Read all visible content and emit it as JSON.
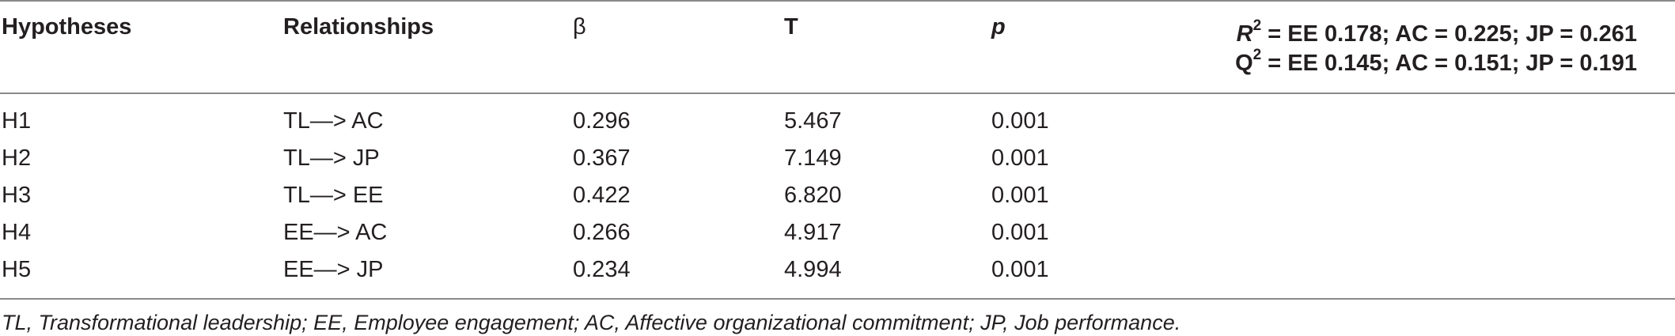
{
  "table": {
    "headers": {
      "hypotheses": "Hypotheses",
      "relationships": "Relationships",
      "beta": "β",
      "t": "T",
      "p": "p"
    },
    "fit": {
      "r2_symbol": "R",
      "r2_sup": "2",
      "r2_values": " = EE 0.178; AC = 0.225; JP = 0.261",
      "q2_symbol": "Q",
      "q2_sup": "2",
      "q2_values": " = EE 0.145; AC = 0.151; JP = 0.191"
    },
    "rows": [
      {
        "hypothesis": "H1",
        "relationship": "TL—> AC",
        "beta": "0.296",
        "t": "5.467",
        "p": "0.001"
      },
      {
        "hypothesis": "H2",
        "relationship": "TL—> JP",
        "beta": "0.367",
        "t": "7.149",
        "p": "0.001"
      },
      {
        "hypothesis": "H3",
        "relationship": "TL—> EE",
        "beta": "0.422",
        "t": "6.820",
        "p": "0.001"
      },
      {
        "hypothesis": "H4",
        "relationship": "EE—> AC",
        "beta": "0.266",
        "t": "4.917",
        "p": "0.001"
      },
      {
        "hypothesis": "H5",
        "relationship": "EE—> JP",
        "beta": "0.234",
        "t": "4.994",
        "p": "0.001"
      }
    ],
    "footnote": "TL, Transformational leadership; EE, Employee engagement; AC, Affective organizational commitment; JP, Job performance."
  }
}
